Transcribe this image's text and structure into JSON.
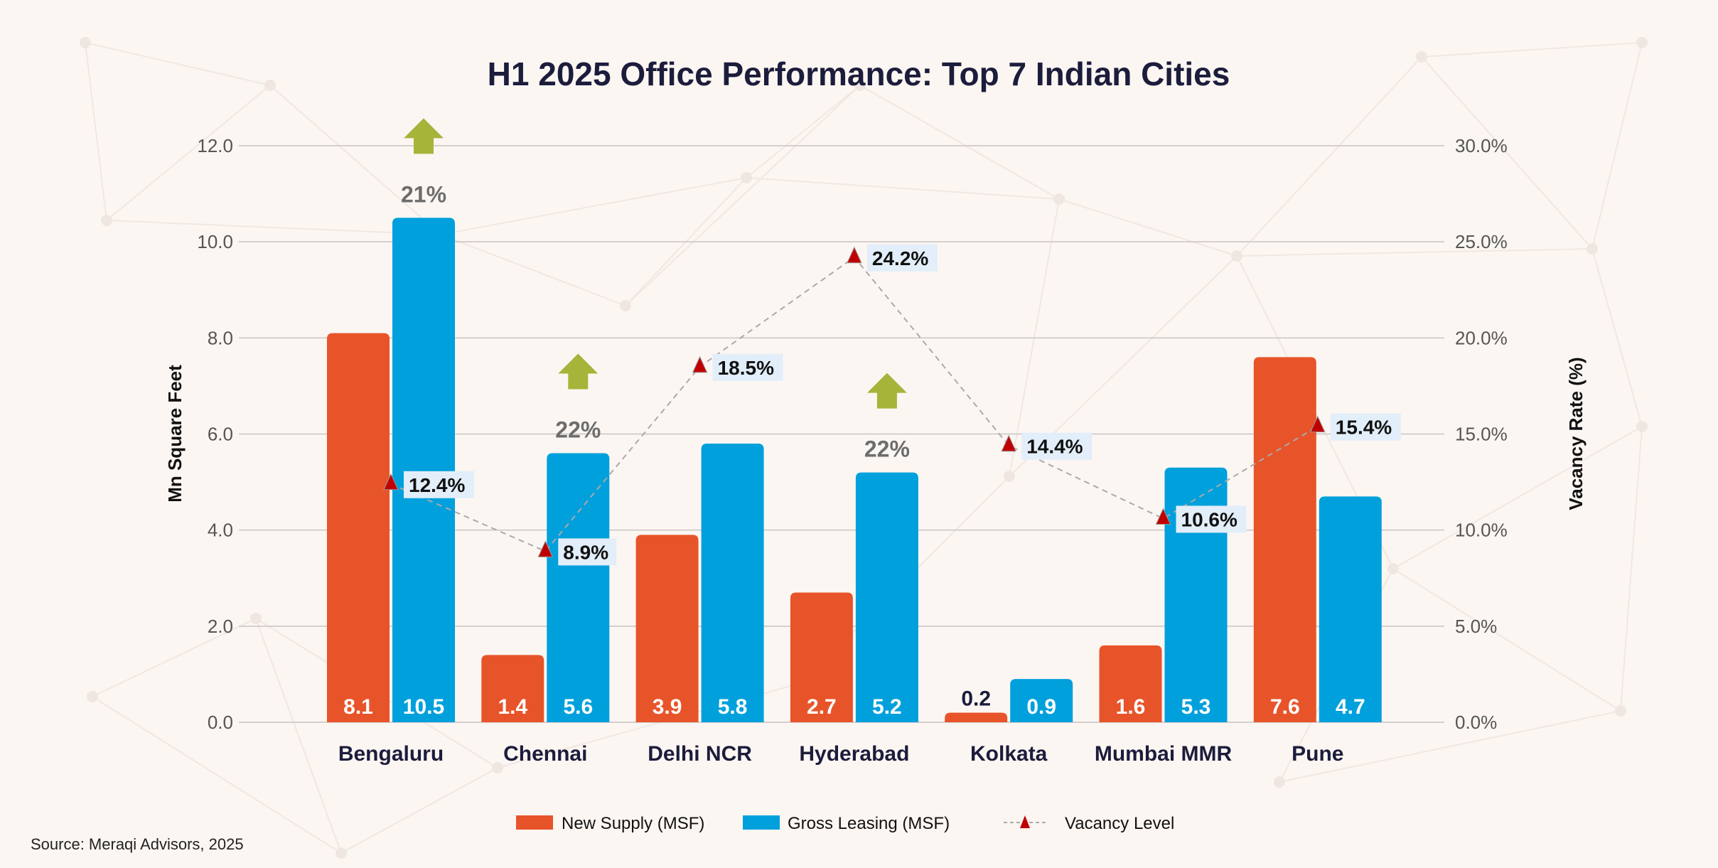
{
  "chart_data": {
    "type": "bar",
    "title": "H1 2025 Office Performance: Top 7 Indian Cities",
    "categories": [
      "Bengaluru",
      "Chennai",
      "Delhi NCR",
      "Hyderabad",
      "Kolkata",
      "Mumbai MMR",
      "Pune"
    ],
    "series": [
      {
        "name": "New Supply (MSF)",
        "type": "bar",
        "axis": "left",
        "color": "#e8542a",
        "values": [
          8.1,
          1.4,
          3.9,
          2.7,
          0.2,
          1.6,
          7.6
        ]
      },
      {
        "name": "Gross Leasing (MSF)",
        "type": "bar",
        "axis": "left",
        "color": "#00a0dc",
        "values": [
          10.5,
          5.6,
          5.8,
          5.2,
          0.9,
          5.3,
          4.7
        ]
      },
      {
        "name": "Vacancy Level",
        "type": "line",
        "axis": "right",
        "color": "#c00000",
        "values": [
          12.4,
          8.9,
          18.5,
          24.2,
          14.4,
          10.6,
          15.4
        ],
        "labels": [
          "12.4%",
          "8.9%",
          "18.5%",
          "24.2%",
          "14.4%",
          "10.6%",
          "15.4%"
        ]
      }
    ],
    "growth_annotations": [
      {
        "category": "Bengaluru",
        "label": "21%",
        "direction": "up"
      },
      {
        "category": "Chennai",
        "label": "22%",
        "direction": "up"
      },
      {
        "category": "Hyderabad",
        "label": "22%",
        "direction": "up"
      }
    ],
    "ylabel": "Mn Square Feet",
    "ylabel_right": "Vacancy Rate (%)",
    "ylim": [
      0,
      12
    ],
    "ylim_right": [
      0,
      30
    ],
    "yticks": [
      "0.0",
      "2.0",
      "4.0",
      "6.0",
      "8.0",
      "10.0",
      "12.0"
    ],
    "yticks_right": [
      "0.0%",
      "5.0%",
      "10.0%",
      "15.0%",
      "20.0%",
      "25.0%",
      "30.0%"
    ],
    "grid": true,
    "legend_position": "bottom",
    "arrow_color": "#a6b43a"
  },
  "source": "Source: Meraqi Advisors, 2025"
}
